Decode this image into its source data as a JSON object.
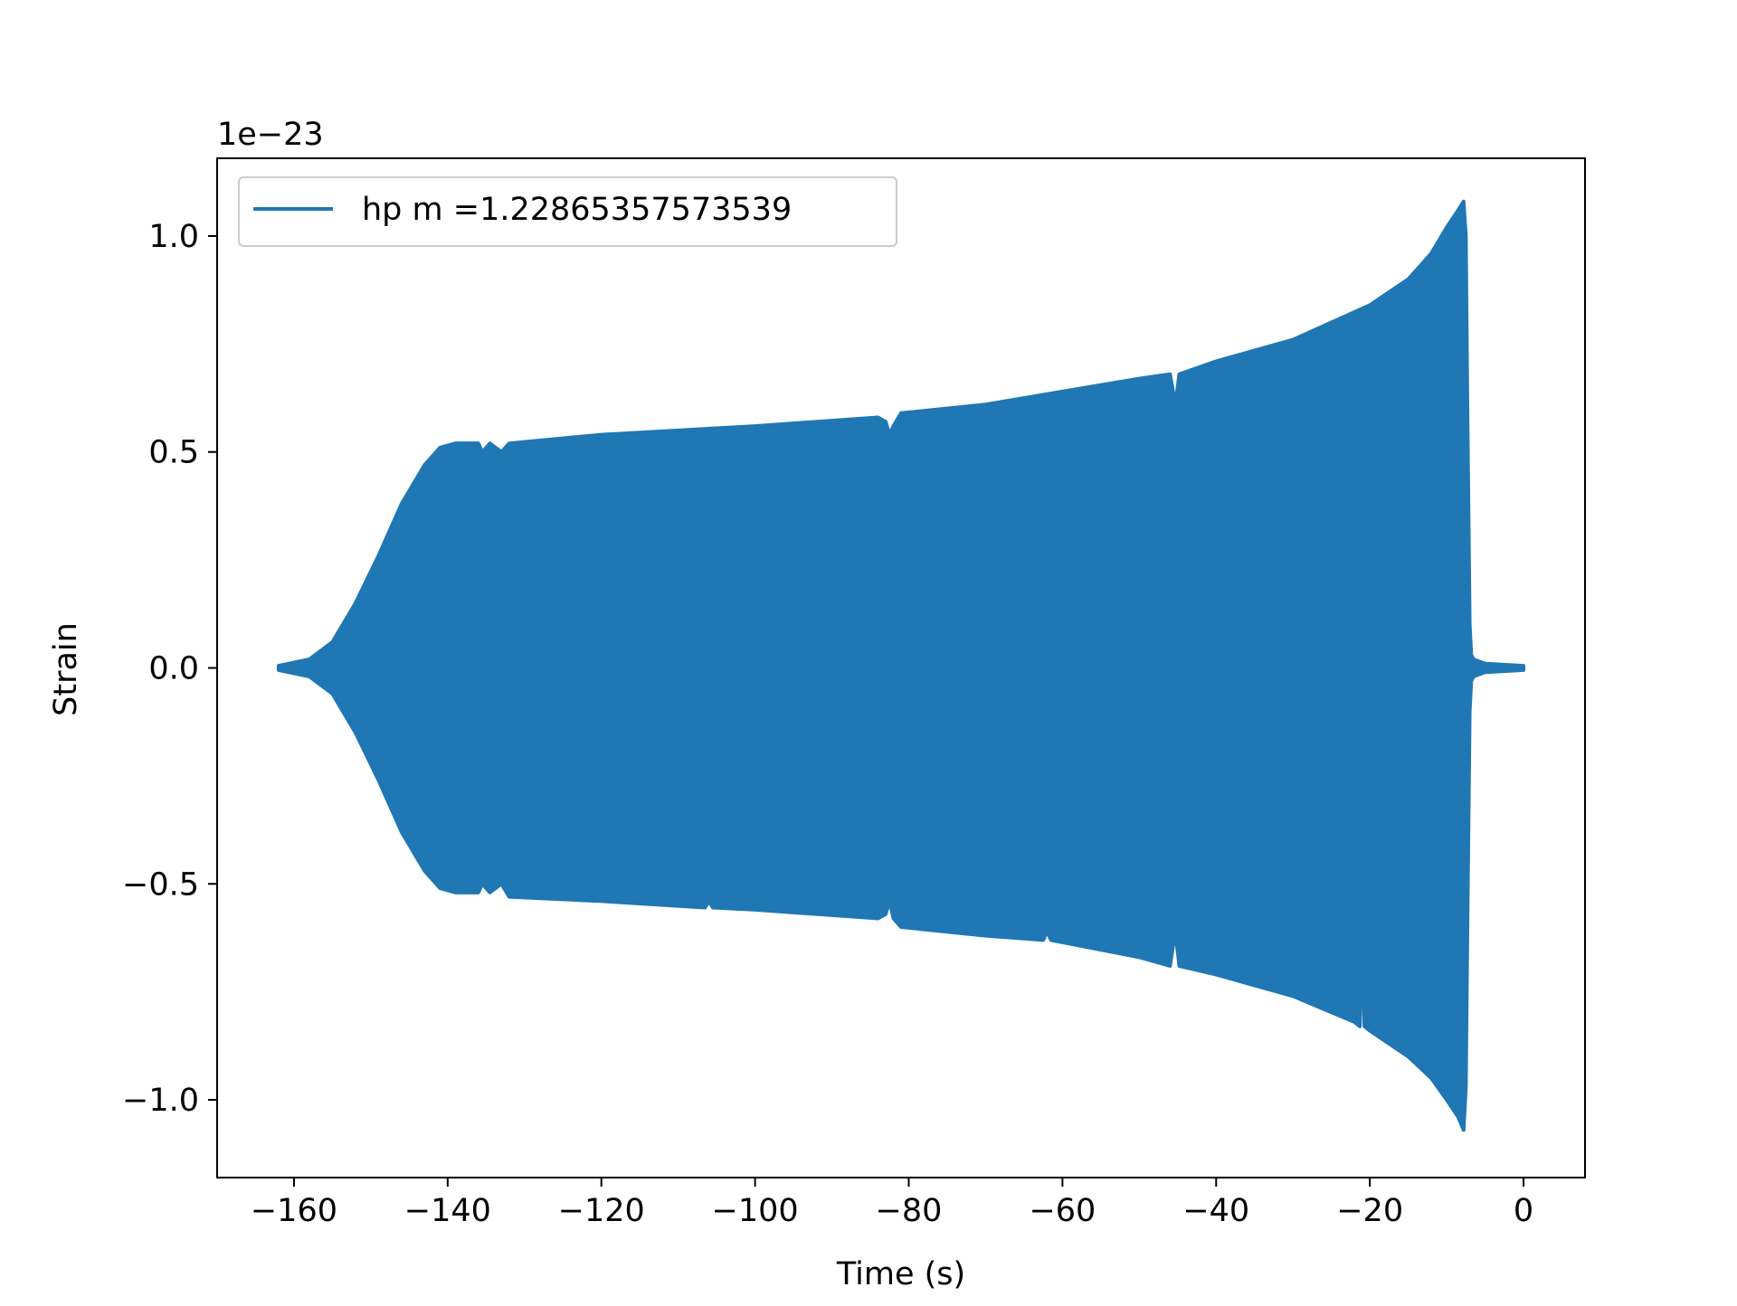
{
  "chart_data": {
    "type": "line",
    "title": "",
    "xlabel": "Time (s)",
    "ylabel": "Strain",
    "offset_label": "1e−23",
    "xlim": [
      -170,
      8
    ],
    "ylim": [
      -1.18,
      1.18
    ],
    "x_ticks": [
      -160,
      -140,
      -120,
      -100,
      -80,
      -60,
      -40,
      -20,
      0
    ],
    "x_tick_labels": [
      "−160",
      "−140",
      "−120",
      "−100",
      "−80",
      "−60",
      "−40",
      "−20",
      "0"
    ],
    "y_ticks": [
      -1.0,
      -0.5,
      0.0,
      0.5,
      1.0
    ],
    "y_tick_labels": [
      "−1.0",
      "−0.5",
      "0.0",
      "0.5",
      "1.0"
    ],
    "legend_position": "upper-left",
    "grid": false,
    "series": [
      {
        "name": "hp m =1.22865357573539",
        "color": "#1f77b4",
        "signal_start": -162,
        "signal_end": 0,
        "merger_time": -7.5,
        "upper_envelope": [
          [
            -162,
            0.005
          ],
          [
            -158,
            0.02
          ],
          [
            -155,
            0.06
          ],
          [
            -152,
            0.15
          ],
          [
            -149,
            0.26
          ],
          [
            -146,
            0.38
          ],
          [
            -143,
            0.47
          ],
          [
            -141,
            0.51
          ],
          [
            -139,
            0.52
          ],
          [
            -136,
            0.52
          ],
          [
            -135.5,
            0.5
          ],
          [
            -134.5,
            0.52
          ],
          [
            -133,
            0.5
          ],
          [
            -132,
            0.52
          ],
          [
            -120,
            0.54
          ],
          [
            -100,
            0.56
          ],
          [
            -84,
            0.58
          ],
          [
            -83,
            0.57
          ],
          [
            -82.5,
            0.54
          ],
          [
            -82,
            0.56
          ],
          [
            -81,
            0.59
          ],
          [
            -70,
            0.61
          ],
          [
            -60,
            0.64
          ],
          [
            -50,
            0.67
          ],
          [
            -46,
            0.68
          ],
          [
            -45.3,
            0.61
          ],
          [
            -44.8,
            0.68
          ],
          [
            -40,
            0.71
          ],
          [
            -30,
            0.76
          ],
          [
            -20,
            0.84
          ],
          [
            -15,
            0.9
          ],
          [
            -12,
            0.96
          ],
          [
            -10,
            1.02
          ],
          [
            -8.5,
            1.06
          ],
          [
            -7.8,
            1.08
          ],
          [
            -7.5,
            1.0
          ],
          [
            -7.3,
            0.6
          ],
          [
            -7.0,
            0.1
          ],
          [
            -6.8,
            0.03
          ],
          [
            -6.5,
            0.02
          ],
          [
            -5,
            0.01
          ],
          [
            0,
            0.005
          ]
        ],
        "lower_envelope": [
          [
            -162,
            -0.005
          ],
          [
            -158,
            -0.02
          ],
          [
            -155,
            -0.06
          ],
          [
            -152,
            -0.15
          ],
          [
            -149,
            -0.26
          ],
          [
            -146,
            -0.38
          ],
          [
            -143,
            -0.47
          ],
          [
            -141,
            -0.51
          ],
          [
            -139,
            -0.52
          ],
          [
            -136,
            -0.52
          ],
          [
            -135.5,
            -0.5
          ],
          [
            -134.5,
            -0.52
          ],
          [
            -133,
            -0.5
          ],
          [
            -132,
            -0.53
          ],
          [
            -120,
            -0.54
          ],
          [
            -106.5,
            -0.555
          ],
          [
            -106,
            -0.54
          ],
          [
            -105.5,
            -0.555
          ],
          [
            -100,
            -0.56
          ],
          [
            -84,
            -0.58
          ],
          [
            -83,
            -0.57
          ],
          [
            -82.5,
            -0.54
          ],
          [
            -82,
            -0.58
          ],
          [
            -81,
            -0.6
          ],
          [
            -70,
            -0.62
          ],
          [
            -62.5,
            -0.63
          ],
          [
            -62,
            -0.61
          ],
          [
            -61.5,
            -0.63
          ],
          [
            -50,
            -0.67
          ],
          [
            -46,
            -0.69
          ],
          [
            -45.3,
            -0.61
          ],
          [
            -44.8,
            -0.69
          ],
          [
            -40,
            -0.71
          ],
          [
            -30,
            -0.76
          ],
          [
            -22,
            -0.82
          ],
          [
            -21.3,
            -0.83
          ],
          [
            -21,
            -0.64
          ],
          [
            -20.7,
            -0.83
          ],
          [
            -20,
            -0.84
          ],
          [
            -15,
            -0.9
          ],
          [
            -12,
            -0.95
          ],
          [
            -10,
            -1.0
          ],
          [
            -8.5,
            -1.04
          ],
          [
            -7.8,
            -1.07
          ],
          [
            -7.5,
            -0.97
          ],
          [
            -7.3,
            -0.6
          ],
          [
            -7.0,
            -0.1
          ],
          [
            -6.8,
            -0.03
          ],
          [
            -6.5,
            -0.02
          ],
          [
            -5,
            -0.01
          ],
          [
            0,
            -0.005
          ]
        ]
      }
    ]
  }
}
